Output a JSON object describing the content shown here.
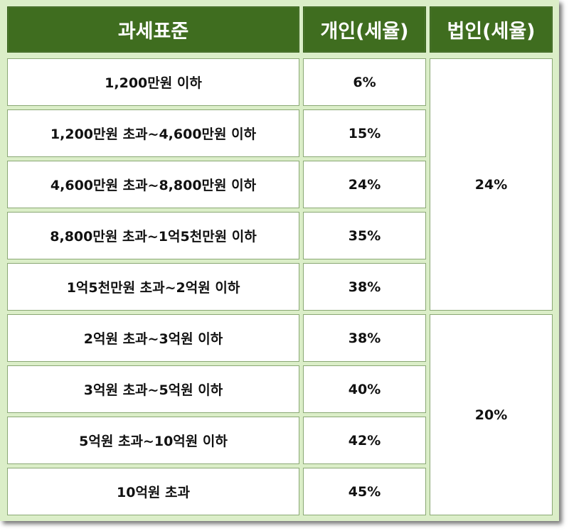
{
  "header": {
    "col_standard": "과세표준",
    "col_individual": "개인(세율)",
    "col_corporate": "법인(세율)"
  },
  "rows": [
    {
      "standard": "1,200만원 이하",
      "individual": "6%"
    },
    {
      "standard": "1,200만원 초과~4,600만원 이하",
      "individual": "15%"
    },
    {
      "standard": "4,600만원 초과~8,800만원 이하",
      "individual": "24%"
    },
    {
      "standard": "8,800만원 초과~1억5천만원 이하",
      "individual": "35%"
    },
    {
      "standard": "1억5천만원 초과~2억원 이하",
      "individual": "38%"
    },
    {
      "standard": "2억원 초과~3억원 이하",
      "individual": "38%"
    },
    {
      "standard": "3억원 초과~5억원 이하",
      "individual": "40%"
    },
    {
      "standard": "5억원 초과~10억원 이하",
      "individual": "42%"
    },
    {
      "standard": "10억원 초과",
      "individual": "45%"
    }
  ],
  "corporate": [
    {
      "rate": "24%",
      "rows": 5
    },
    {
      "rate": "20%",
      "rows": 4
    }
  ],
  "colors": {
    "header_bg": "#3f6d1f",
    "header_text": "#ffffff",
    "frame_bg": "#dbeec8",
    "cell_border": "#8aa874"
  }
}
